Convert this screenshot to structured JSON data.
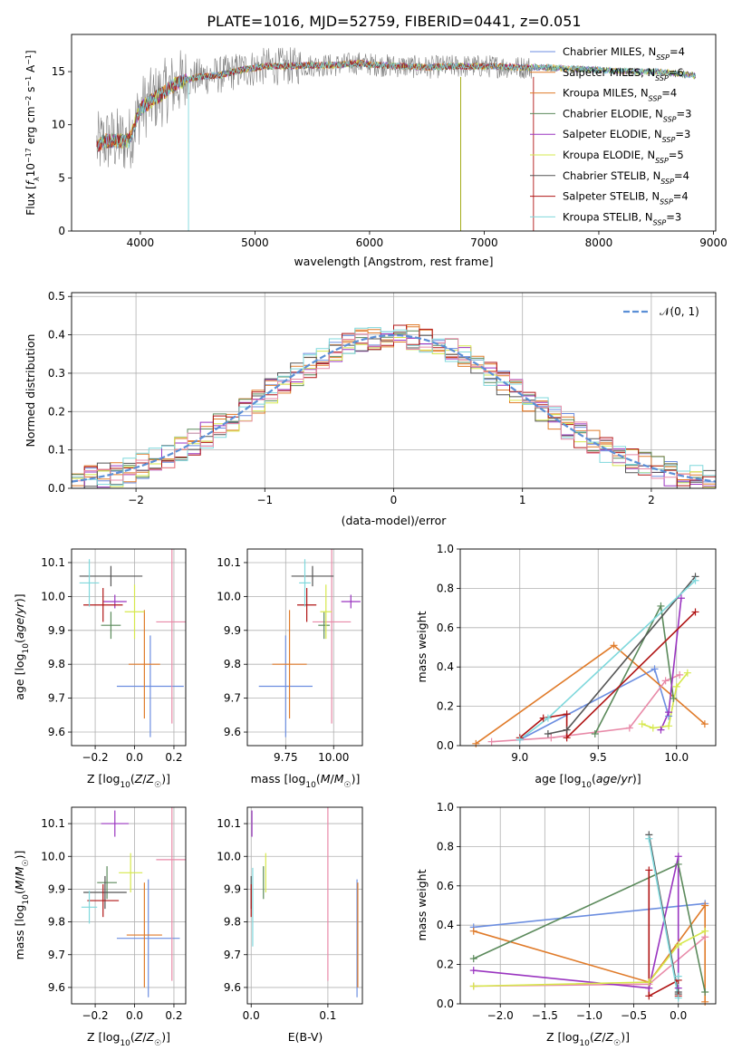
{
  "figure": {
    "title": "PLATE=1016, MJD=52759, FIBERID=0441, z=0.051"
  },
  "colors": {
    "Chabrier MILES": "#6c8ee0",
    "Salpeter MILES": "#e07b2a",
    "Kroupa MILES": "#e07b2a",
    "Chabrier ELODIE": "#5b8a5b",
    "Salpeter ELODIE": "#9a35c0",
    "Kroupa ELODIE": "#d6e84c",
    "Chabrier STELIB": "#555555",
    "Salpeter STELIB": "#b01515",
    "Kroupa STELIB": "#7fd8dc",
    "pink": "#e88aa8",
    "gray_data": "#808080",
    "gauss": "#5b8fd6"
  },
  "chart_data": [
    {
      "id": "spectrum",
      "type": "line",
      "title": "PLATE=1016, MJD=52759, FIBERID=0441, z=0.051",
      "xlabel": "wavelength [Angstrom, rest frame]",
      "ylabel": "Flux [fλ10⁻¹⁷ erg cm⁻² s⁻¹ A⁻¹]",
      "xlim": [
        3400,
        9020
      ],
      "ylim": [
        0,
        18.5
      ],
      "xticks": [
        4000,
        5000,
        6000,
        7000,
        8000,
        9000
      ],
      "yticks": [
        0,
        5,
        10,
        15
      ],
      "grid": false,
      "legend_position": "upper-right",
      "legend": [
        {
          "base": "Chabrier MILES, N",
          "sub": "SSP",
          "suffix": "=4",
          "color": "#6c8ee0"
        },
        {
          "base": "Salpeter MILES, N",
          "sub": "SSP",
          "suffix": "=6",
          "color": "#e07b2a"
        },
        {
          "base": "Kroupa MILES, N",
          "sub": "SSP",
          "suffix": "=4",
          "color": "#e07b2a"
        },
        {
          "base": "Chabrier ELODIE, N",
          "sub": "SSP",
          "suffix": "=3",
          "color": "#5b8a5b"
        },
        {
          "base": "Salpeter ELODIE, N",
          "sub": "SSP",
          "suffix": "=3",
          "color": "#9a35c0"
        },
        {
          "base": "Kroupa ELODIE, N",
          "sub": "SSP",
          "suffix": "=5",
          "color": "#d6e84c"
        },
        {
          "base": "Chabrier STELIB, N",
          "sub": "SSP",
          "suffix": "=4",
          "color": "#555555"
        },
        {
          "base": "Salpeter STELIB, N",
          "sub": "SSP",
          "suffix": "=4",
          "color": "#b01515"
        },
        {
          "base": "Kroupa STELIB, N",
          "sub": "SSP",
          "suffix": "=3",
          "color": "#7fd8dc"
        }
      ],
      "data_curve": {
        "x": [
          3620,
          3700,
          3800,
          3900,
          4000,
          4100,
          4200,
          4300,
          4400,
          4500,
          4700,
          4900,
          5100,
          5300,
          5500,
          5700,
          5900,
          6100,
          6300,
          6500,
          6700,
          6900,
          7100,
          7300,
          7500,
          7700,
          7900,
          8100,
          8300,
          8500,
          8700,
          8850
        ],
        "y": [
          8.0,
          8.5,
          8.5,
          8.5,
          11.5,
          12.3,
          13.0,
          13.8,
          14.2,
          14.5,
          14.7,
          15.2,
          15.5,
          15.5,
          15.6,
          15.6,
          15.8,
          15.6,
          15.5,
          15.4,
          15.5,
          15.5,
          15.5,
          15.4,
          15.4,
          15.3,
          15.2,
          15.1,
          15.0,
          15.0,
          14.8,
          14.6
        ]
      }
    },
    {
      "id": "residuals",
      "type": "line",
      "xlabel": "(data-model)/error",
      "ylabel": "Normed distribution",
      "xlim": [
        -2.5,
        2.5
      ],
      "ylim": [
        0,
        0.51
      ],
      "xticks": [
        -2,
        -1,
        0,
        1,
        2
      ],
      "yticks": [
        0.0,
        0.1,
        0.2,
        0.3,
        0.4,
        0.5
      ],
      "grid": true,
      "legend_position": "upper-right",
      "legend": [
        {
          "label": "𝒩(0, 1)",
          "style": "dashed",
          "color": "#5b8fd6"
        }
      ],
      "gaussian": {
        "mean": 0,
        "sigma": 1
      },
      "hist_bins": [
        -2.5,
        2.5,
        50
      ]
    },
    {
      "id": "age_vs_Z",
      "type": "scatter",
      "xlabel": "Z [log10(Z/Z☉)]",
      "ylabel": "age [log10(age/yr)]",
      "xlim": [
        -0.32,
        0.26
      ],
      "ylim": [
        9.56,
        10.14
      ],
      "xticks": [
        -0.2,
        0.0,
        0.2
      ],
      "yticks": [
        9.6,
        9.7,
        9.8,
        9.9,
        10.0,
        10.1
      ],
      "grid": true,
      "points": [
        {
          "x": 0.08,
          "y": 9.735,
          "xe": 0.17,
          "ye": 0.15,
          "color": "#6c8ee0"
        },
        {
          "x": 0.05,
          "y": 9.8,
          "xe": 0.08,
          "ye": 0.16,
          "color": "#e07b2a"
        },
        {
          "x": 0.19,
          "y": 9.925,
          "xe": 0.08,
          "ye": 0.3,
          "color": "#e88aa8"
        },
        {
          "x": -0.12,
          "y": 9.915,
          "xe": 0.05,
          "ye": 0.04,
          "color": "#5b8a5b"
        },
        {
          "x": -0.1,
          "y": 9.985,
          "xe": 0.06,
          "ye": 0.02,
          "color": "#9a35c0"
        },
        {
          "x": 0.0,
          "y": 9.955,
          "xe": 0.05,
          "ye": 0.08,
          "color": "#d6e84c"
        },
        {
          "x": -0.12,
          "y": 10.06,
          "xe": 0.16,
          "ye": 0.03,
          "color": "#555555"
        },
        {
          "x": -0.16,
          "y": 9.975,
          "xe": 0.1,
          "ye": 0.05,
          "color": "#b01515"
        },
        {
          "x": -0.23,
          "y": 10.04,
          "xe": 0.05,
          "ye": 0.07,
          "color": "#7fd8dc"
        }
      ]
    },
    {
      "id": "age_vs_mass",
      "type": "scatter",
      "xlabel": "mass [log10(M/M☉)]",
      "xlim": [
        9.55,
        10.15
      ],
      "ylim": [
        9.56,
        10.14
      ],
      "xticks": [
        9.75,
        10.0
      ],
      "yticks": [
        9.6,
        9.7,
        9.8,
        9.9,
        10.0,
        10.1
      ],
      "grid": true,
      "points": [
        {
          "x": 9.75,
          "y": 9.735,
          "xe": 0.14,
          "ye": 0.15,
          "color": "#6c8ee0"
        },
        {
          "x": 9.77,
          "y": 9.8,
          "xe": 0.09,
          "ye": 0.16,
          "color": "#e07b2a"
        },
        {
          "x": 9.99,
          "y": 9.925,
          "xe": 0.1,
          "ye": 0.3,
          "color": "#e88aa8"
        },
        {
          "x": 9.95,
          "y": 9.915,
          "xe": 0.03,
          "ye": 0.04,
          "color": "#5b8a5b"
        },
        {
          "x": 10.09,
          "y": 9.985,
          "xe": 0.05,
          "ye": 0.02,
          "color": "#9a35c0"
        },
        {
          "x": 9.96,
          "y": 9.955,
          "xe": 0.03,
          "ye": 0.08,
          "color": "#d6e84c"
        },
        {
          "x": 9.89,
          "y": 10.06,
          "xe": 0.11,
          "ye": 0.03,
          "color": "#555555"
        },
        {
          "x": 9.86,
          "y": 9.975,
          "xe": 0.05,
          "ye": 0.05,
          "color": "#b01515"
        },
        {
          "x": 9.85,
          "y": 10.04,
          "xe": 0.03,
          "ye": 0.07,
          "color": "#7fd8dc"
        }
      ]
    },
    {
      "id": "mass_vs_Z",
      "type": "scatter",
      "xlabel": "Z [log10(Z/Z☉)]",
      "ylabel": "mass [log10(M/M☉)]",
      "xlim": [
        -0.32,
        0.26
      ],
      "ylim": [
        9.55,
        10.15
      ],
      "xticks": [
        -0.2,
        0.0,
        0.2
      ],
      "yticks": [
        9.6,
        9.7,
        9.8,
        9.9,
        10.0,
        10.1
      ],
      "grid": true,
      "points": [
        {
          "x": 0.07,
          "y": 9.75,
          "xe": 0.16,
          "ye": 0.18,
          "color": "#6c8ee0"
        },
        {
          "x": 0.05,
          "y": 9.76,
          "xe": 0.09,
          "ye": 0.16,
          "color": "#e07b2a"
        },
        {
          "x": 0.19,
          "y": 9.99,
          "xe": 0.08,
          "ye": 0.37,
          "color": "#e88aa8"
        },
        {
          "x": -0.14,
          "y": 9.92,
          "xe": 0.05,
          "ye": 0.05,
          "color": "#5b8a5b"
        },
        {
          "x": -0.1,
          "y": 10.1,
          "xe": 0.07,
          "ye": 0.04,
          "color": "#9a35c0"
        },
        {
          "x": -0.02,
          "y": 9.95,
          "xe": 0.06,
          "ye": 0.06,
          "color": "#d6e84c"
        },
        {
          "x": -0.15,
          "y": 9.89,
          "xe": 0.11,
          "ye": 0.05,
          "color": "#555555"
        },
        {
          "x": -0.16,
          "y": 9.865,
          "xe": 0.08,
          "ye": 0.05,
          "color": "#b01515"
        },
        {
          "x": -0.23,
          "y": 9.845,
          "xe": 0.04,
          "ye": 0.05,
          "color": "#7fd8dc"
        }
      ]
    },
    {
      "id": "mass_vs_EBV",
      "type": "scatter",
      "xlabel": "E(B-V)",
      "xlim": [
        -0.005,
        0.145
      ],
      "ylim": [
        9.55,
        10.15
      ],
      "xticks": [
        0.0,
        0.1
      ],
      "yticks": [
        9.6,
        9.7,
        9.8,
        9.9,
        10.0,
        10.1
      ],
      "grid": true,
      "points": [
        {
          "x": 0.138,
          "y": 9.75,
          "xe": 0,
          "ye": 0.18,
          "color": "#6c8ee0"
        },
        {
          "x": 0.139,
          "y": 9.76,
          "xe": 0,
          "ye": 0.16,
          "color": "#e07b2a"
        },
        {
          "x": 0.1,
          "y": 9.99,
          "xe": 0,
          "ye": 0.37,
          "color": "#e88aa8"
        },
        {
          "x": 0.016,
          "y": 9.92,
          "xe": 0,
          "ye": 0.05,
          "color": "#5b8a5b"
        },
        {
          "x": 0.001,
          "y": 10.1,
          "xe": 0,
          "ye": 0.04,
          "color": "#9a35c0"
        },
        {
          "x": 0.019,
          "y": 9.95,
          "xe": 0,
          "ye": 0.06,
          "color": "#d6e84c"
        },
        {
          "x": 0.0,
          "y": 9.89,
          "xe": 0,
          "ye": 0.05,
          "color": "#555555"
        },
        {
          "x": 0.0,
          "y": 9.865,
          "xe": 0,
          "ye": 0.05,
          "color": "#b01515"
        },
        {
          "x": 0.002,
          "y": 9.845,
          "xe": 0,
          "ye": 0.12,
          "color": "#7fd8dc"
        }
      ]
    },
    {
      "id": "weight_vs_age",
      "type": "line",
      "xlabel": "age  [log10(age/yr)]",
      "ylabel": "mass weight",
      "xlim": [
        8.62,
        10.25
      ],
      "ylim": [
        0,
        1.0
      ],
      "xticks": [
        9.0,
        9.5,
        10.0
      ],
      "yticks": [
        0.0,
        0.2,
        0.4,
        0.6,
        0.8,
        1.0
      ],
      "grid": true,
      "series": [
        {
          "color": "#6c8ee0",
          "x": [
            9.0,
            9.86,
            9.95
          ],
          "y": [
            0.03,
            0.39,
            0.15
          ]
        },
        {
          "color": "#e07b2a",
          "x": [
            8.72,
            9.6,
            10.18
          ],
          "y": [
            0.01,
            0.51,
            0.11
          ]
        },
        {
          "color": "#e88aa8",
          "x": [
            8.82,
            9.2,
            9.7,
            9.93,
            10.02
          ],
          "y": [
            0.02,
            0.04,
            0.09,
            0.33,
            0.36
          ]
        },
        {
          "color": "#5b8a5b",
          "x": [
            9.48,
            9.9,
            9.98
          ],
          "y": [
            0.06,
            0.71,
            0.24
          ]
        },
        {
          "color": "#9a35c0",
          "x": [
            9.9,
            9.95,
            10.03
          ],
          "y": [
            0.08,
            0.17,
            0.75
          ]
        },
        {
          "color": "#d6e84c",
          "x": [
            9.78,
            9.85,
            9.95,
            10.0,
            10.07
          ],
          "y": [
            0.11,
            0.09,
            0.1,
            0.3,
            0.37
          ]
        },
        {
          "color": "#555555",
          "x": [
            9.18,
            9.3,
            10.12
          ],
          "y": [
            0.06,
            0.08,
            0.86
          ]
        },
        {
          "color": "#b01515",
          "x": [
            9.0,
            9.15,
            9.3,
            9.3,
            10.12
          ],
          "y": [
            0.04,
            0.14,
            0.16,
            0.04,
            0.68
          ]
        },
        {
          "color": "#7fd8dc",
          "x": [
            9.0,
            9.18,
            10.12
          ],
          "y": [
            0.03,
            0.14,
            0.84
          ]
        }
      ]
    },
    {
      "id": "weight_vs_Z",
      "type": "line",
      "xlabel": "Z [log10(Z/Z☉)]",
      "ylabel": "mass weight",
      "xlim": [
        -2.45,
        0.42
      ],
      "ylim": [
        0,
        1.0
      ],
      "xticks": [
        -2.0,
        -1.5,
        -1.0,
        -0.5,
        0.0
      ],
      "yticks": [
        0.0,
        0.2,
        0.4,
        0.6,
        0.8,
        1.0
      ],
      "grid": true,
      "series": [
        {
          "color": "#6c8ee0",
          "x": [
            -2.3,
            0.3
          ],
          "y": [
            0.39,
            0.51
          ]
        },
        {
          "color": "#e07b2a",
          "x": [
            -2.3,
            -0.33,
            0.3,
            0.3
          ],
          "y": [
            0.37,
            0.11,
            0.5,
            0.01
          ]
        },
        {
          "color": "#e88aa8",
          "x": [
            -2.3,
            -0.33,
            0.3
          ],
          "y": [
            0.09,
            0.1,
            0.34
          ]
        },
        {
          "color": "#5b8a5b",
          "x": [
            -2.3,
            0.0,
            0.3
          ],
          "y": [
            0.23,
            0.71,
            0.06
          ]
        },
        {
          "color": "#9a35c0",
          "x": [
            -2.3,
            -0.33,
            0.0,
            0.0
          ],
          "y": [
            0.17,
            0.08,
            0.75,
            0.08
          ]
        },
        {
          "color": "#d6e84c",
          "x": [
            -2.3,
            -0.33,
            0.0,
            0.3
          ],
          "y": [
            0.09,
            0.11,
            0.3,
            0.37
          ]
        },
        {
          "color": "#555555",
          "x": [
            -0.33,
            0.0,
            0.0
          ],
          "y": [
            0.86,
            0.05,
            0.06
          ]
        },
        {
          "color": "#b01515",
          "x": [
            -0.33,
            -0.33,
            0.0,
            0.0
          ],
          "y": [
            0.68,
            0.04,
            0.12,
            0.04
          ]
        },
        {
          "color": "#7fd8dc",
          "x": [
            -0.33,
            0.0,
            0.0
          ],
          "y": [
            0.84,
            0.03,
            0.14
          ]
        }
      ]
    }
  ]
}
